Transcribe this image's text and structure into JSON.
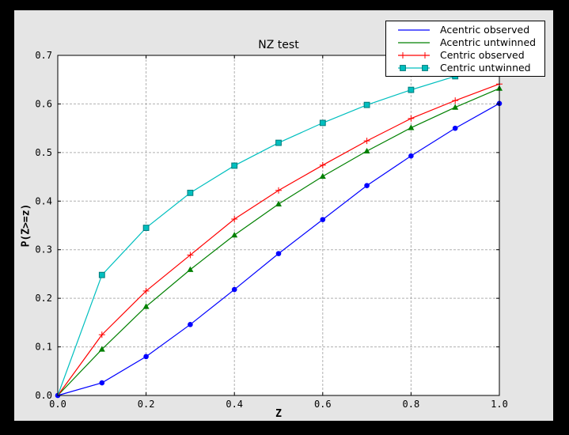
{
  "window": {
    "background": "#000000",
    "figure_background": "#e5e5e5"
  },
  "chart_data": {
    "type": "line",
    "title": "NZ test",
    "xlabel": "Z",
    "ylabel": "P(Z>=z)",
    "xlim": [
      0.0,
      1.0
    ],
    "ylim": [
      0.0,
      0.7
    ],
    "x_ticks": [
      "0.0",
      "0.2",
      "0.4",
      "0.6",
      "0.8",
      "1.0"
    ],
    "y_ticks": [
      "0.0",
      "0.1",
      "0.2",
      "0.3",
      "0.4",
      "0.5",
      "0.6",
      "0.7"
    ],
    "grid": "dashed",
    "legend_position": "upper right",
    "x": [
      0.0,
      0.1,
      0.2,
      0.3,
      0.4,
      0.5,
      0.6,
      0.7,
      0.8,
      0.9,
      1.0
    ],
    "series": [
      {
        "name": "Acentric observed",
        "color": "#0000ff",
        "marker": "circle",
        "legend_markers": false,
        "marker_at_origin": true,
        "values": [
          0.0,
          0.026,
          0.08,
          0.146,
          0.218,
          0.292,
          0.362,
          0.432,
          0.493,
          0.55,
          0.601
        ]
      },
      {
        "name": "Acentric untwinned",
        "color": "#008000",
        "marker": "triangle",
        "legend_markers": false,
        "marker_at_origin": false,
        "values": [
          0.0,
          0.095,
          0.183,
          0.259,
          0.33,
          0.394,
          0.451,
          0.503,
          0.551,
          0.593,
          0.632
        ]
      },
      {
        "name": "Centric observed",
        "color": "#ff0000",
        "marker": "plus",
        "legend_markers": true,
        "marker_at_origin": false,
        "values": [
          0.0,
          0.125,
          0.215,
          0.289,
          0.363,
          0.422,
          0.474,
          0.524,
          0.57,
          0.607,
          0.641
        ]
      },
      {
        "name": "Centric untwinned",
        "color": "#00bfbf",
        "marker": "square",
        "legend_markers": true,
        "marker_at_origin": false,
        "values": [
          0.0,
          0.248,
          0.345,
          0.417,
          0.473,
          0.52,
          0.561,
          0.598,
          0.629,
          0.657,
          0.683
        ]
      }
    ],
    "colors": {
      "plot_bg": "#ffffff",
      "grid": "#b0b0b0",
      "frame": "#000000",
      "square_edge": "#007a7a"
    }
  }
}
